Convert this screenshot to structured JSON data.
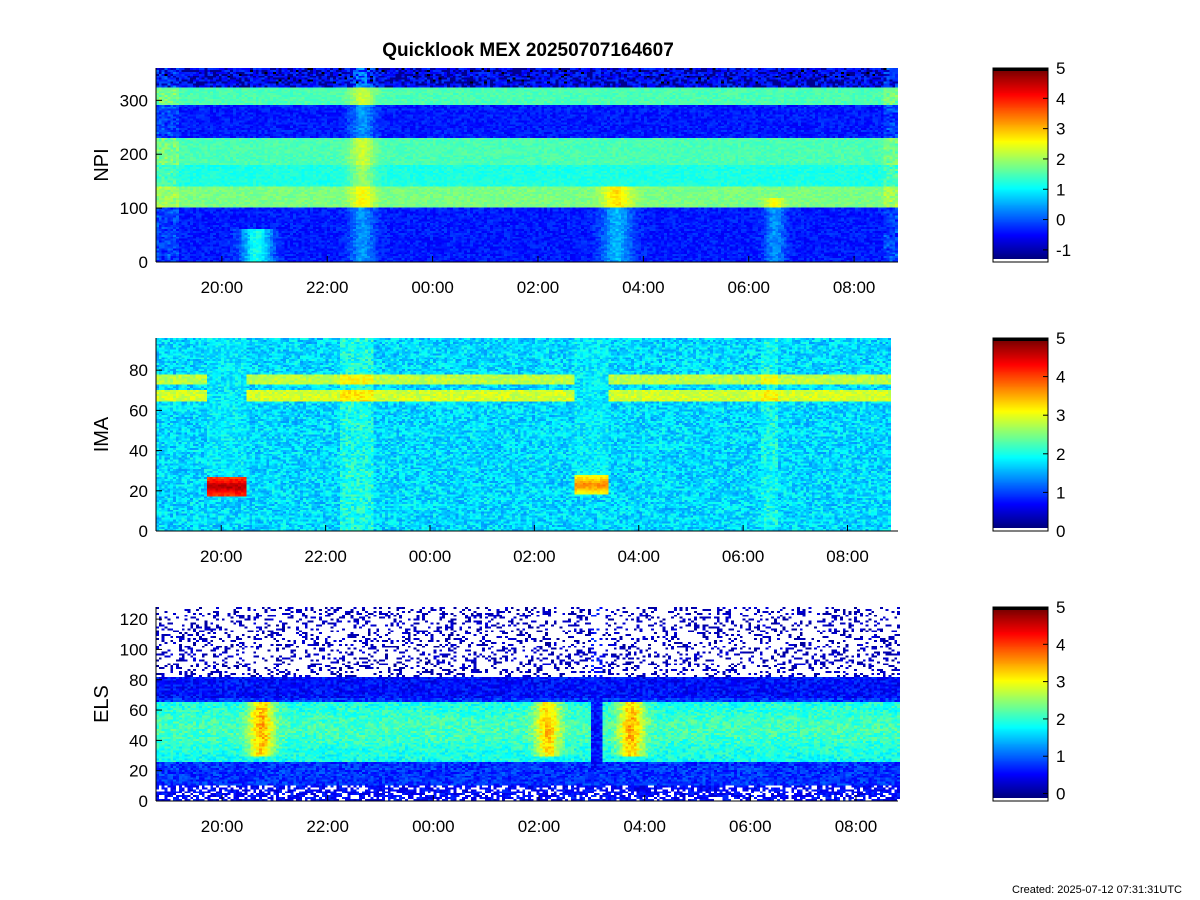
{
  "title": "Quicklook MEX 20250707164607",
  "footer": "Created: 2025-07-12 07:31:31UTC",
  "chart_data": [
    {
      "type": "heatmap",
      "name": "NPI",
      "ylabel": "NPI",
      "ylim": [
        0,
        360
      ],
      "yticks": [
        "0",
        "100",
        "200",
        "300"
      ],
      "xlim": [
        "18:45",
        "08:50"
      ],
      "xticks": [
        "20:00",
        "22:00",
        "00:00",
        "02:00",
        "04:00",
        "06:00",
        "08:00"
      ],
      "colorbar": {
        "range": [
          -1.4,
          5
        ],
        "ticks": [
          "-1",
          "0",
          "1",
          "2",
          "3",
          "4",
          "5"
        ]
      },
      "bands": [
        {
          "from": 100,
          "to": 140,
          "value": 1.6
        },
        {
          "from": 140,
          "to": 180,
          "value": 1.0
        },
        {
          "from": 180,
          "to": 230,
          "value": 1.3
        },
        {
          "from": 290,
          "to": 325,
          "value": 1.3
        }
      ],
      "features": [
        {
          "time": "20:40",
          "note": "bright patch near 0-60"
        },
        {
          "time": "22:40",
          "note": "vertical disturbance"
        },
        {
          "time": "03:30",
          "note": "bright arc"
        },
        {
          "time": "06:30",
          "note": "arc"
        }
      ]
    },
    {
      "type": "heatmap",
      "name": "IMA",
      "ylabel": "IMA",
      "ylim": [
        0,
        96
      ],
      "yticks": [
        "0",
        "20",
        "40",
        "60",
        "80"
      ],
      "xlim": [
        "18:45",
        "08:50"
      ],
      "xticks": [
        "20:00",
        "22:00",
        "00:00",
        "02:00",
        "04:00",
        "06:00",
        "08:00"
      ],
      "colorbar": {
        "range": [
          0,
          5
        ],
        "ticks": [
          "0",
          "1",
          "2",
          "3",
          "4",
          "5"
        ]
      },
      "bands": [
        {
          "from": 64,
          "to": 70,
          "value": 2.7
        },
        {
          "from": 73,
          "to": 78,
          "value": 2.6
        }
      ],
      "features": [
        {
          "time": "20:00",
          "y": 22,
          "value": 4.6,
          "note": "dip to ~20"
        },
        {
          "time": "03:00",
          "y": 23,
          "value": 3.6,
          "note": "dip to ~20"
        }
      ]
    },
    {
      "type": "heatmap",
      "name": "ELS",
      "ylabel": "ELS",
      "ylim": [
        0,
        128
      ],
      "yticks": [
        "0",
        "20",
        "40",
        "60",
        "80",
        "100",
        "120"
      ],
      "xlim": [
        "18:45",
        "08:50"
      ],
      "xticks": [
        "20:00",
        "22:00",
        "00:00",
        "02:00",
        "04:00",
        "06:00",
        "08:00"
      ],
      "colorbar": {
        "range": [
          -0.2,
          5
        ],
        "ticks": [
          "0",
          "1",
          "2",
          "3",
          "4",
          "5"
        ]
      },
      "bands": [
        {
          "from": 25,
          "to": 65,
          "value": 1.5
        }
      ],
      "features": [
        {
          "time": "20:45",
          "note": "enhanced ~55"
        },
        {
          "time": "02:10",
          "note": "enhanced"
        },
        {
          "time": "03:45",
          "note": "enhanced"
        }
      ]
    }
  ]
}
